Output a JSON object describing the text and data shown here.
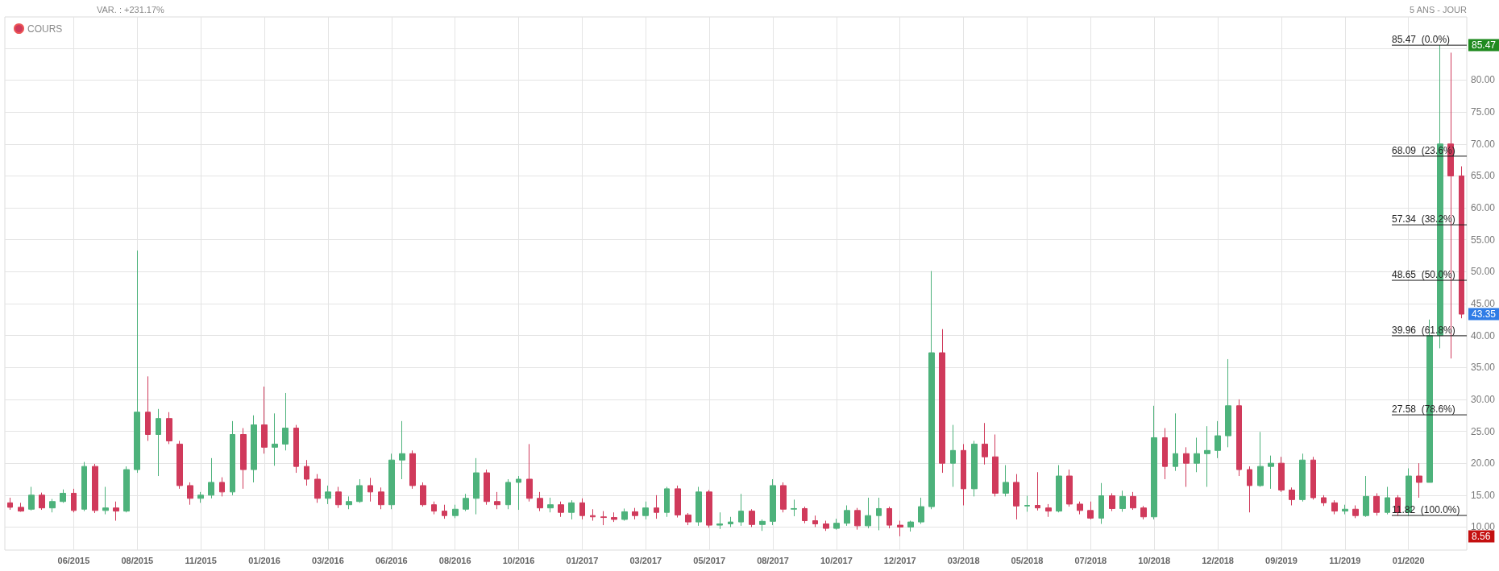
{
  "chart_data": {
    "type": "candlestick",
    "subtitle": "VAR. : +231.17%",
    "categories": [
      null,
      null,
      null,
      null,
      null,
      null,
      "06/2015",
      null,
      null,
      null,
      null,
      null,
      "08/2015",
      null,
      null,
      null,
      null,
      null,
      "11/2015",
      null,
      null,
      null,
      null,
      null,
      "01/2016",
      null,
      null,
      null,
      null,
      null,
      "03/2016",
      null,
      null,
      null,
      null,
      null,
      "06/2016",
      null,
      null,
      null,
      null,
      null,
      "08/2016",
      null,
      null,
      null,
      null,
      null,
      "10/2016",
      null,
      null,
      null,
      null,
      null,
      "01/2017",
      null,
      null,
      null,
      null,
      null,
      "03/2017",
      null,
      null,
      null,
      null,
      null,
      "05/2017",
      null,
      null,
      null,
      null,
      null,
      "08/2017",
      null,
      null,
      null,
      null,
      null,
      "10/2017",
      null,
      null,
      null,
      null,
      null,
      "12/2017",
      null,
      null,
      null,
      null,
      null,
      "03/2018",
      null,
      null,
      null,
      null,
      null,
      "05/2018",
      null,
      null,
      null,
      null,
      null,
      "07/2018",
      null,
      null,
      null,
      null,
      null,
      "10/2018",
      null,
      null,
      null,
      null,
      null,
      "12/2018",
      null,
      null,
      null,
      null,
      null,
      "09/2019",
      null,
      null,
      null,
      null,
      null,
      "11/2019",
      null,
      null,
      null,
      null,
      null,
      "01/2020",
      null,
      null,
      null,
      null,
      null
    ],
    "series": [
      {
        "name": "COURS",
        "ohlc": [
          [
            13.8,
            14.6,
            12.7,
            13.1
          ],
          [
            13.1,
            13.8,
            12.4,
            12.5
          ],
          [
            12.8,
            16.3,
            12.6,
            15.0
          ],
          [
            15.0,
            15.4,
            12.7,
            13.0
          ],
          [
            13.0,
            14.4,
            12.3,
            14.0
          ],
          [
            14.0,
            15.9,
            13.8,
            15.3
          ],
          [
            15.3,
            16.0,
            12.3,
            12.6
          ],
          [
            12.8,
            20.2,
            12.5,
            19.5
          ],
          [
            19.5,
            19.9,
            12.2,
            12.6
          ],
          [
            12.6,
            16.3,
            12.0,
            13.0
          ],
          [
            13.0,
            14.0,
            11.0,
            12.5
          ],
          [
            12.5,
            19.5,
            12.3,
            19.0
          ],
          [
            19.0,
            53.3,
            18.5,
            28.0
          ],
          [
            28.0,
            33.6,
            23.5,
            24.5
          ],
          [
            24.5,
            28.5,
            18.0,
            27.0
          ],
          [
            27.0,
            28.0,
            23.0,
            23.5
          ],
          [
            23.0,
            23.5,
            16.0,
            16.5
          ],
          [
            16.5,
            17.0,
            13.5,
            14.5
          ],
          [
            14.5,
            15.5,
            13.8,
            15.0
          ],
          [
            15.0,
            20.8,
            14.5,
            17.0
          ],
          [
            17.0,
            17.8,
            14.8,
            15.5
          ],
          [
            15.5,
            26.6,
            15.0,
            24.5
          ],
          [
            24.5,
            25.5,
            16.0,
            19.0
          ],
          [
            19.0,
            27.5,
            17.0,
            26.0
          ],
          [
            26.0,
            32.0,
            21.5,
            22.5
          ],
          [
            22.5,
            27.8,
            19.6,
            23.0
          ],
          [
            23.0,
            31.0,
            22.0,
            25.5
          ],
          [
            25.5,
            26.0,
            18.5,
            19.5
          ],
          [
            19.5,
            20.5,
            16.5,
            17.5
          ],
          [
            17.5,
            18.3,
            13.8,
            14.5
          ],
          [
            14.5,
            16.5,
            13.6,
            15.5
          ],
          [
            15.5,
            16.3,
            13.0,
            13.5
          ],
          [
            13.5,
            14.8,
            12.8,
            14.0
          ],
          [
            14.0,
            17.5,
            13.8,
            16.5
          ],
          [
            16.5,
            17.7,
            14.0,
            15.5
          ],
          [
            15.5,
            16.2,
            12.8,
            13.5
          ],
          [
            13.5,
            21.5,
            12.8,
            20.5
          ],
          [
            20.5,
            26.6,
            17.5,
            21.5
          ],
          [
            21.5,
            22.0,
            16.0,
            16.5
          ],
          [
            16.5,
            17.0,
            13.2,
            13.5
          ],
          [
            13.5,
            14.0,
            12.0,
            12.5
          ],
          [
            12.5,
            13.5,
            11.3,
            11.8
          ],
          [
            11.8,
            13.5,
            11.4,
            12.8
          ],
          [
            12.8,
            15.2,
            12.5,
            14.5
          ],
          [
            14.5,
            20.8,
            12.0,
            18.5
          ],
          [
            18.5,
            19.0,
            13.5,
            14.0
          ],
          [
            14.0,
            15.5,
            12.8,
            13.5
          ],
          [
            13.5,
            17.5,
            12.8,
            17.0
          ],
          [
            17.0,
            18.0,
            12.7,
            17.5
          ],
          [
            17.5,
            23.0,
            14.0,
            14.5
          ],
          [
            14.5,
            15.5,
            12.5,
            13.0
          ],
          [
            13.0,
            14.6,
            12.3,
            13.5
          ],
          [
            13.5,
            14.0,
            11.6,
            12.3
          ],
          [
            12.3,
            14.2,
            11.2,
            13.8
          ],
          [
            13.8,
            14.5,
            11.2,
            11.8
          ],
          [
            11.8,
            12.8,
            11.0,
            11.6
          ],
          [
            11.6,
            12.5,
            10.3,
            11.5
          ],
          [
            11.5,
            12.3,
            10.8,
            11.2
          ],
          [
            11.2,
            12.9,
            11.0,
            12.4
          ],
          [
            12.4,
            13.0,
            11.2,
            11.8
          ],
          [
            11.8,
            14.0,
            11.2,
            13.0
          ],
          [
            13.0,
            15.0,
            11.3,
            12.3
          ],
          [
            12.3,
            16.3,
            11.6,
            16.0
          ],
          [
            16.0,
            16.5,
            11.5,
            11.9
          ],
          [
            11.9,
            12.2,
            10.3,
            10.8
          ],
          [
            10.8,
            16.3,
            10.2,
            15.5
          ],
          [
            15.5,
            15.8,
            9.9,
            10.3
          ],
          [
            10.3,
            12.3,
            9.7,
            10.5
          ],
          [
            10.5,
            11.6,
            10.0,
            10.8
          ],
          [
            10.8,
            15.2,
            10.2,
            12.5
          ],
          [
            12.5,
            12.8,
            10.0,
            10.4
          ],
          [
            10.4,
            11.2,
            9.4,
            10.9
          ],
          [
            10.9,
            17.5,
            10.3,
            16.5
          ],
          [
            16.5,
            17.0,
            12.3,
            12.8
          ],
          [
            12.8,
            14.3,
            11.7,
            12.9
          ],
          [
            12.9,
            13.2,
            10.6,
            11.0
          ],
          [
            11.0,
            11.8,
            10.0,
            10.5
          ],
          [
            10.5,
            11.0,
            9.4,
            9.8
          ],
          [
            9.8,
            11.3,
            9.6,
            10.6
          ],
          [
            10.6,
            13.4,
            10.2,
            12.6
          ],
          [
            12.6,
            13.0,
            9.6,
            10.2
          ],
          [
            10.2,
            14.6,
            9.8,
            11.8
          ],
          [
            11.8,
            14.6,
            9.5,
            12.9
          ],
          [
            12.9,
            13.2,
            9.8,
            10.3
          ],
          [
            10.3,
            11.0,
            8.56,
            10.0
          ],
          [
            10.0,
            11.0,
            9.3,
            10.8
          ],
          [
            10.8,
            14.6,
            10.5,
            13.2
          ],
          [
            13.2,
            50.1,
            12.8,
            37.3
          ],
          [
            37.3,
            41.0,
            18.5,
            20.0
          ],
          [
            20.0,
            26.0,
            16.3,
            22.0
          ],
          [
            22.0,
            23.0,
            13.4,
            16.0
          ],
          [
            16.0,
            23.5,
            14.8,
            23.0
          ],
          [
            23.0,
            26.3,
            19.8,
            21.0
          ],
          [
            21.0,
            24.5,
            14.8,
            15.3
          ],
          [
            15.3,
            19.7,
            14.8,
            17.0
          ],
          [
            17.0,
            18.3,
            11.2,
            13.3
          ],
          [
            13.3,
            14.9,
            12.4,
            13.4
          ],
          [
            13.4,
            18.6,
            12.6,
            13.0
          ],
          [
            13.0,
            13.6,
            11.6,
            12.5
          ],
          [
            12.5,
            19.7,
            12.3,
            18.0
          ],
          [
            18.0,
            19.0,
            13.2,
            13.6
          ],
          [
            13.6,
            14.0,
            12.0,
            12.6
          ],
          [
            12.6,
            14.0,
            11.2,
            11.4
          ],
          [
            11.4,
            16.9,
            10.5,
            14.9
          ],
          [
            14.9,
            15.3,
            12.5,
            12.9
          ],
          [
            12.9,
            15.7,
            12.4,
            14.8
          ],
          [
            14.8,
            15.5,
            12.7,
            13.0
          ],
          [
            13.0,
            13.3,
            11.2,
            11.6
          ],
          [
            11.6,
            29.0,
            11.2,
            24.0
          ],
          [
            24.0,
            25.5,
            17.5,
            19.5
          ],
          [
            19.5,
            27.8,
            18.8,
            21.5
          ],
          [
            21.5,
            22.5,
            16.3,
            20.0
          ],
          [
            20.0,
            24.0,
            18.6,
            21.5
          ],
          [
            21.5,
            25.8,
            16.3,
            22.0
          ],
          [
            22.0,
            26.6,
            20.8,
            24.3
          ],
          [
            24.3,
            36.3,
            22.5,
            29.0
          ],
          [
            29.0,
            30.0,
            18.0,
            19.0
          ],
          [
            19.0,
            19.5,
            12.3,
            16.5
          ],
          [
            16.5,
            24.9,
            16.3,
            19.5
          ],
          [
            19.5,
            21.2,
            16.0,
            20.0
          ],
          [
            20.0,
            21.0,
            15.5,
            15.8
          ],
          [
            15.8,
            16.2,
            13.4,
            14.3
          ],
          [
            14.3,
            21.5,
            14.0,
            20.5
          ],
          [
            20.5,
            21.0,
            14.3,
            14.6
          ],
          [
            14.6,
            15.0,
            13.3,
            13.8
          ],
          [
            13.8,
            14.2,
            12.0,
            12.5
          ],
          [
            12.5,
            13.5,
            12.0,
            12.8
          ],
          [
            12.8,
            13.4,
            11.4,
            11.8
          ],
          [
            11.8,
            18.0,
            11.6,
            14.8
          ],
          [
            14.8,
            15.3,
            11.8,
            12.3
          ],
          [
            12.3,
            16.3,
            12.0,
            14.6
          ],
          [
            14.6,
            15.0,
            11.8,
            12.3
          ],
          [
            12.3,
            19.2,
            11.8,
            18.0
          ],
          [
            18.0,
            20.0,
            14.6,
            17.0
          ],
          [
            17.0,
            42.5,
            17.0,
            40.0
          ],
          [
            40.0,
            85.47,
            38.0,
            70.0
          ],
          [
            70.0,
            84.3,
            36.4,
            65.0
          ],
          [
            65.0,
            66.5,
            42.7,
            43.35
          ]
        ],
        "colors": [
          "#d03a5b",
          "#d03a5b",
          "#4db27b",
          "#d03a5b",
          "#4db27b",
          "#4db27b",
          "#d03a5b",
          "#4db27b",
          "#d03a5b",
          "#4db27b",
          "#d03a5b",
          "#4db27b",
          "#4db27b",
          "#d03a5b",
          "#4db27b",
          "#d03a5b",
          "#d03a5b",
          "#d03a5b",
          "#4db27b",
          "#4db27b",
          "#d03a5b",
          "#4db27b",
          "#d03a5b",
          "#4db27b",
          "#d03a5b",
          "#4db27b",
          "#4db27b",
          "#d03a5b",
          "#d03a5b",
          "#d03a5b",
          "#4db27b",
          "#d03a5b",
          "#4db27b",
          "#4db27b",
          "#d03a5b",
          "#d03a5b",
          "#4db27b",
          "#4db27b",
          "#d03a5b",
          "#d03a5b",
          "#d03a5b",
          "#d03a5b",
          "#4db27b",
          "#4db27b",
          "#4db27b",
          "#d03a5b",
          "#d03a5b",
          "#4db27b",
          "#4db27b",
          "#d03a5b",
          "#d03a5b",
          "#4db27b",
          "#d03a5b",
          "#4db27b",
          "#d03a5b",
          "#d03a5b",
          "#d03a5b",
          "#d03a5b",
          "#4db27b",
          "#d03a5b",
          "#4db27b",
          "#d03a5b",
          "#4db27b",
          "#d03a5b",
          "#d03a5b",
          "#4db27b",
          "#d03a5b",
          "#4db27b",
          "#4db27b",
          "#4db27b",
          "#d03a5b",
          "#4db27b",
          "#4db27b",
          "#d03a5b",
          "#4db27b",
          "#d03a5b",
          "#d03a5b",
          "#d03a5b",
          "#4db27b",
          "#4db27b",
          "#d03a5b",
          "#4db27b",
          "#4db27b",
          "#d03a5b",
          "#d03a5b",
          "#4db27b",
          "#4db27b",
          "#4db27b",
          "#d03a5b",
          "#4db27b",
          "#d03a5b",
          "#4db27b",
          "#d03a5b",
          "#d03a5b",
          "#4db27b",
          "#d03a5b",
          "#4db27b",
          "#d03a5b",
          "#d03a5b",
          "#4db27b",
          "#d03a5b",
          "#d03a5b",
          "#d03a5b",
          "#4db27b",
          "#d03a5b",
          "#4db27b",
          "#d03a5b",
          "#d03a5b",
          "#4db27b",
          "#d03a5b",
          "#4db27b",
          "#d03a5b",
          "#4db27b",
          "#4db27b",
          "#4db27b",
          "#4db27b",
          "#d03a5b",
          "#d03a5b",
          "#4db27b",
          "#4db27b",
          "#d03a5b",
          "#d03a5b",
          "#4db27b",
          "#d03a5b",
          "#d03a5b",
          "#d03a5b",
          "#4db27b",
          "#d03a5b",
          "#4db27b",
          "#d03a5b",
          "#4db27b",
          "#d03a5b",
          "#4db27b",
          "#d03a5b",
          "#4db27b",
          "#4db27b",
          "#d03a5b",
          "#d03a5b"
        ]
      }
    ],
    "ylim": [
      6.4,
      89.9
    ],
    "yticks": [
      {
        "value": 10,
        "label": "10.00"
      },
      {
        "value": 15,
        "label": "15.00"
      },
      {
        "value": 20,
        "label": "20.00"
      },
      {
        "value": 25,
        "label": "25.00"
      },
      {
        "value": 30,
        "label": "30.00"
      },
      {
        "value": 35,
        "label": "35.00"
      },
      {
        "value": 40,
        "label": "40.00"
      },
      {
        "value": 45,
        "label": "45.00"
      },
      {
        "value": 50,
        "label": "50.00"
      },
      {
        "value": 55,
        "label": "55.00"
      },
      {
        "value": 60,
        "label": "60.00"
      },
      {
        "value": 65,
        "label": "65.00"
      },
      {
        "value": 70,
        "label": "70.00"
      },
      {
        "value": 75,
        "label": "75.00"
      },
      {
        "value": 80,
        "label": "80.00"
      },
      {
        "value": 85,
        "label": null
      }
    ],
    "ref_lines": [
      {
        "axis": "y",
        "value": 85.47,
        "label": "85.47  (0.0%)",
        "color": "#1a1a1a"
      },
      {
        "axis": "y",
        "value": 68.09,
        "label": "68.09  (23.6%)",
        "color": "#1a1a1a"
      },
      {
        "axis": "y",
        "value": 57.34,
        "label": "57.34  (38.2%)",
        "color": "#1a1a1a"
      },
      {
        "axis": "y",
        "value": 48.65,
        "label": "48.65  (50.0%)",
        "color": "#1a1a1a"
      },
      {
        "axis": "y",
        "value": 39.96,
        "label": "39.96  (61.8%)",
        "color": "#1a1a1a"
      },
      {
        "axis": "y",
        "value": 27.58,
        "label": "27.58  (78.6%)",
        "color": "#1a1a1a"
      },
      {
        "axis": "y",
        "value": 11.82,
        "label": "11.82  (100.0%)",
        "color": "#1a1a1a"
      }
    ],
    "annotations": [
      "5 ANS - JOUR",
      {
        "text": "85.47",
        "y": 85.47
      },
      {
        "text": "43.35",
        "y": 43.35
      },
      {
        "text": "8.56",
        "y": 8.56
      }
    ],
    "grid": true,
    "legend": "top left"
  }
}
